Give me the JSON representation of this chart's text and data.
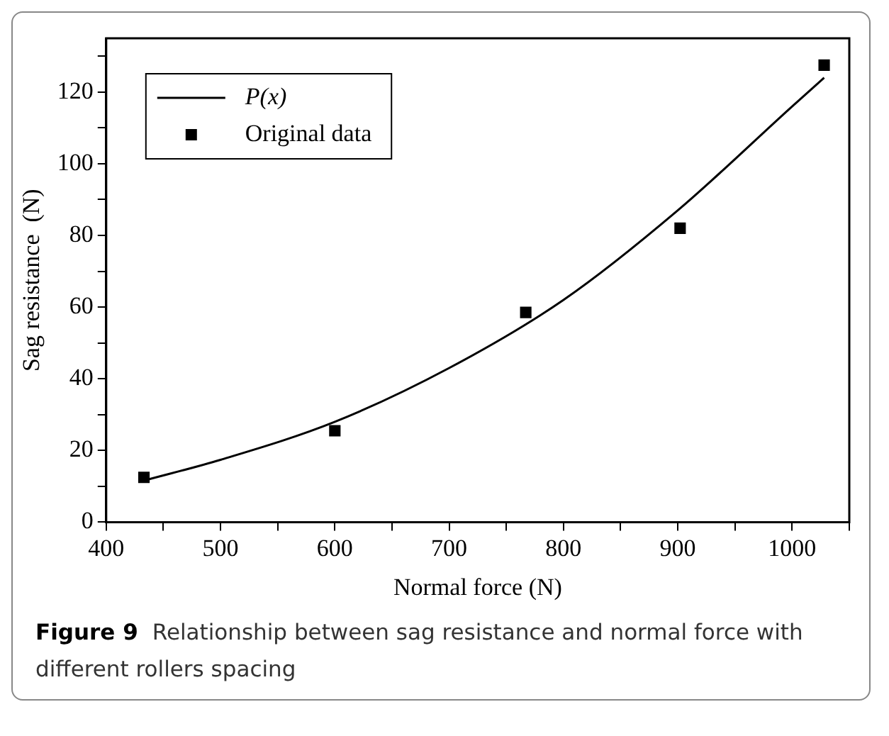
{
  "chart_data": {
    "type": "scatter",
    "xlabel": "Normal force (N)",
    "ylabel": "Sag resistance  (N)",
    "annotations": [
      "Figure 9",
      "Relationship between sag resistance and normal force with different rollers spacing"
    ],
    "xlim": [
      400,
      1050
    ],
    "xticks": [
      400,
      {
        "value": 450,
        "label": null
      },
      500,
      {
        "value": 550,
        "label": null
      },
      600,
      {
        "value": 650,
        "label": null
      },
      700,
      {
        "value": 750,
        "label": null
      },
      800,
      {
        "value": 850,
        "label": null
      },
      900,
      {
        "value": 950,
        "label": null
      },
      1000,
      {
        "value": 1050,
        "label": null
      }
    ],
    "ylim": [
      0,
      135
    ],
    "yticks": [
      0,
      {
        "value": 10,
        "label": null
      },
      20,
      {
        "value": 30,
        "label": null
      },
      40,
      {
        "value": 50,
        "label": null
      },
      60,
      {
        "value": 70,
        "label": null
      },
      80,
      {
        "value": 90,
        "label": null
      },
      100,
      {
        "value": 110,
        "label": null
      },
      120,
      {
        "value": 130,
        "label": null
      }
    ],
    "grid": false,
    "legend": "top left",
    "series": [
      {
        "name": "P(x)",
        "type": "line",
        "color": "#000000",
        "marker": "none",
        "line_style": "solid",
        "x": [
          433,
          500,
          600,
          700,
          800,
          900,
          1000,
          1028
        ],
        "values": [
          11.6,
          17.4,
          28,
          43,
          62,
          87,
          116,
          124
        ]
      },
      {
        "name": "Original data",
        "type": "scatter",
        "color": "#000000",
        "marker": "square",
        "x": [
          433,
          600,
          767,
          902,
          1028
        ],
        "values": [
          12.5,
          25.5,
          58.5,
          82,
          127.5
        ]
      }
    ]
  }
}
